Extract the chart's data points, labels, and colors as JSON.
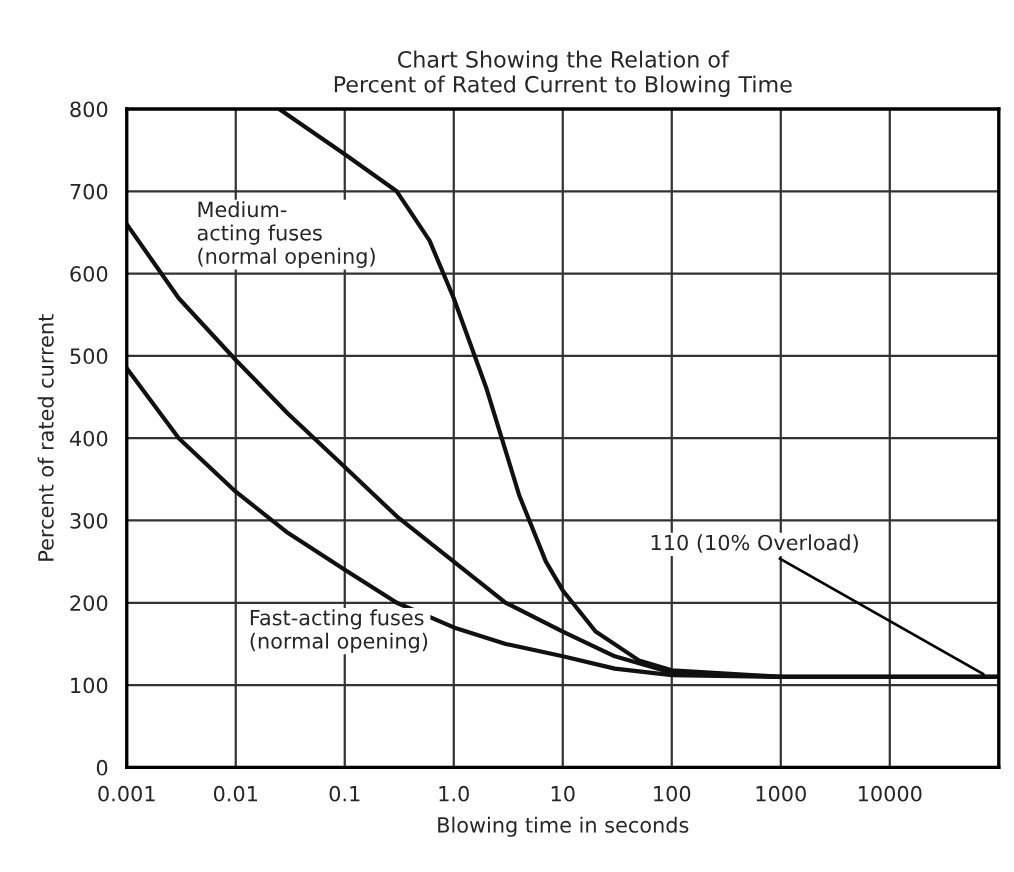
{
  "chart_data": {
    "type": "line",
    "title": "Chart Showing the Relation of\nPercent of Rated Current to Blowing Time",
    "xlabel": "Blowing time in seconds",
    "ylabel": "Percent of rated current",
    "log": "x",
    "grid": true,
    "legend": false,
    "marker": "none",
    "line_style": "solid",
    "xlim": [
      0.001,
      100000
    ],
    "ylim": [
      0,
      800
    ],
    "xticks": [
      0.001,
      0.01,
      0.1,
      {
        "value": 1,
        "label": "1.0"
      },
      10,
      100,
      1000,
      10000
    ],
    "yticks": [
      0,
      100,
      200,
      300,
      400,
      500,
      600,
      700,
      800
    ],
    "series": [
      {
        "name": "Medium-\nacting fuses\n(normal opening)",
        "color": "#111111",
        "x": [
          0.001,
          0.003,
          0.01,
          0.03,
          0.1,
          0.3,
          1,
          3,
          10,
          30,
          100,
          1000,
          100000
        ],
        "values": [
          660,
          570,
          495,
          430,
          365,
          305,
          250,
          200,
          165,
          135,
          115,
          110,
          110
        ]
      },
      {
        "name": "Fast-acting fuses\n(normal opening)",
        "color": "#111111",
        "x": [
          0.001,
          0.003,
          0.01,
          0.03,
          0.1,
          0.3,
          1,
          3,
          10,
          30,
          100,
          1000,
          100000
        ],
        "values": [
          485,
          400,
          335,
          285,
          240,
          200,
          170,
          150,
          135,
          120,
          112,
          110,
          110
        ]
      },
      {
        "color": "#111111",
        "x": [
          0.025,
          0.1,
          0.3,
          0.6,
          1,
          2,
          4,
          7,
          10,
          20,
          50,
          100,
          1000,
          100000
        ],
        "values": [
          800,
          745,
          700,
          640,
          570,
          460,
          330,
          250,
          215,
          165,
          130,
          118,
          110,
          110
        ]
      }
    ],
    "annotations": [
      {
        "text": "110 (10% Overload)",
        "x": 80000,
        "y": 110
      }
    ]
  }
}
